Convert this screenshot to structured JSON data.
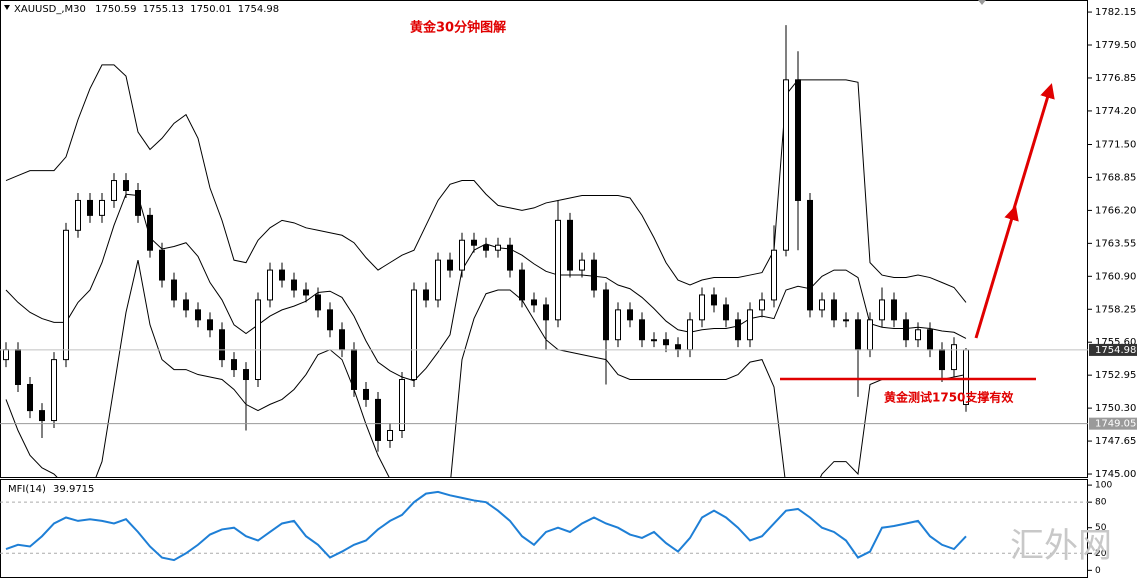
{
  "chart_data": [
    {
      "type": "candlestick",
      "symbol": "XAUUSD_,M30",
      "title": "黄金30分钟图解",
      "annotation": "黄金测试1750支撑有效",
      "watermark": "汇外网",
      "open": [
        1754.2,
        1755.0,
        1752.2,
        1750.1,
        1749.3,
        1754.2,
        1764.6,
        1767.0,
        1765.8,
        1767.0,
        1768.6,
        1767.8,
        1765.8,
        1763.0,
        1760.6,
        1759.0,
        1758.2,
        1757.4,
        1756.6,
        1754.2,
        1753.4,
        1752.6,
        1759.0,
        1761.4,
        1760.6,
        1759.8,
        1759.4,
        1758.2,
        1756.6,
        1755.0,
        1751.8,
        1751.0,
        1747.7,
        1748.5,
        1752.6,
        1759.8,
        1759.0,
        1762.2,
        1761.4,
        1763.8,
        1763.4,
        1763.0,
        1763.4,
        1761.4,
        1759.0,
        1758.6,
        1757.4,
        1765.4,
        1761.4,
        1762.2,
        1759.8,
        1755.8,
        1758.2,
        1757.4,
        1755.8,
        1755.8,
        1755.4,
        1755.0,
        1757.4,
        1759.4,
        1758.6,
        1757.4,
        1755.8,
        1758.2,
        1759.0,
        1763.0,
        1776.7,
        1767.0,
        1758.2,
        1759.0,
        1757.4,
        1757.4,
        1755.0,
        1757.4,
        1759.0,
        1757.4,
        1755.8,
        1756.6,
        1755.0,
        1753.4,
        1750.59
      ],
      "high": [
        1755.6,
        1755.6,
        1752.8,
        1750.7,
        1754.8,
        1765.2,
        1767.6,
        1767.6,
        1767.6,
        1769.2,
        1769.2,
        1768.4,
        1766.4,
        1763.6,
        1761.2,
        1759.6,
        1758.8,
        1758.0,
        1757.2,
        1754.8,
        1754.0,
        1759.6,
        1762.0,
        1762.0,
        1761.2,
        1760.4,
        1760.0,
        1758.8,
        1757.2,
        1755.6,
        1752.4,
        1751.6,
        1749.1,
        1753.2,
        1760.4,
        1760.4,
        1762.8,
        1762.8,
        1764.4,
        1764.4,
        1764.0,
        1764.0,
        1764.0,
        1762.0,
        1759.6,
        1759.2,
        1767.0,
        1766.0,
        1762.8,
        1762.8,
        1760.4,
        1758.8,
        1758.8,
        1758.0,
        1756.4,
        1756.4,
        1756.0,
        1758.0,
        1760.0,
        1760.0,
        1759.2,
        1758.0,
        1758.8,
        1759.6,
        1765.0,
        1781.1,
        1779.0,
        1767.6,
        1759.6,
        1759.6,
        1758.0,
        1758.0,
        1758.0,
        1760.0,
        1759.6,
        1758.0,
        1757.2,
        1757.2,
        1755.6,
        1756.0,
        1755.13
      ],
      "low": [
        1753.6,
        1751.6,
        1749.5,
        1747.9,
        1748.7,
        1753.6,
        1764.0,
        1765.2,
        1765.2,
        1766.4,
        1767.2,
        1765.2,
        1762.4,
        1760.0,
        1758.4,
        1757.6,
        1756.8,
        1756.0,
        1753.6,
        1752.8,
        1748.5,
        1752.0,
        1758.4,
        1760.0,
        1759.2,
        1758.8,
        1757.6,
        1756.0,
        1754.4,
        1751.2,
        1750.4,
        1746.8,
        1747.1,
        1747.9,
        1752.0,
        1758.4,
        1758.4,
        1760.8,
        1760.8,
        1762.8,
        1762.4,
        1762.4,
        1760.8,
        1758.4,
        1758.0,
        1755.0,
        1756.8,
        1760.8,
        1760.8,
        1759.2,
        1752.2,
        1755.2,
        1756.8,
        1755.2,
        1755.2,
        1754.8,
        1754.4,
        1754.4,
        1756.8,
        1758.0,
        1756.8,
        1755.2,
        1755.2,
        1757.6,
        1758.4,
        1762.5,
        1763.0,
        1757.6,
        1757.6,
        1756.8,
        1756.8,
        1751.2,
        1754.4,
        1756.8,
        1756.8,
        1755.2,
        1755.2,
        1754.4,
        1752.4,
        1752.8,
        1750.01
      ],
      "close": [
        1755.0,
        1752.2,
        1750.1,
        1749.3,
        1754.2,
        1764.6,
        1767.0,
        1765.8,
        1767.0,
        1768.6,
        1767.8,
        1765.8,
        1763.0,
        1760.6,
        1759.0,
        1758.2,
        1757.4,
        1756.6,
        1754.2,
        1753.4,
        1752.6,
        1759.0,
        1761.4,
        1760.6,
        1759.8,
        1759.4,
        1758.2,
        1756.6,
        1755.0,
        1751.8,
        1751.0,
        1747.7,
        1748.5,
        1752.6,
        1759.8,
        1759.0,
        1762.2,
        1761.4,
        1763.8,
        1763.4,
        1763.0,
        1763.4,
        1761.4,
        1759.0,
        1758.6,
        1757.4,
        1765.4,
        1761.4,
        1762.2,
        1759.8,
        1755.8,
        1758.2,
        1757.4,
        1755.8,
        1755.8,
        1755.4,
        1755.0,
        1757.4,
        1759.4,
        1758.6,
        1757.4,
        1755.8,
        1758.2,
        1759.0,
        1763.0,
        1776.7,
        1767.0,
        1758.2,
        1759.0,
        1757.4,
        1757.4,
        1755.0,
        1757.4,
        1759.0,
        1757.4,
        1755.8,
        1756.6,
        1755.0,
        1753.4,
        1755.4,
        1754.98
      ],
      "bollinger": {
        "upper": [
          1768.6,
          1769.0,
          1769.4,
          1769.4,
          1769.4,
          1770.5,
          1773.5,
          1776.0,
          1777.9,
          1777.9,
          1777.0,
          1772.5,
          1771.1,
          1772.0,
          1773.2,
          1773.9,
          1772.0,
          1768.0,
          1765.4,
          1762.2,
          1762.0,
          1763.8,
          1764.8,
          1765.4,
          1765.2,
          1764.8,
          1764.6,
          1764.4,
          1764.2,
          1763.6,
          1762.4,
          1761.4,
          1762.0,
          1762.6,
          1763.0,
          1765.0,
          1767.0,
          1768.3,
          1768.6,
          1768.6,
          1767.5,
          1766.6,
          1766.4,
          1766.2,
          1766.4,
          1766.8,
          1767.0,
          1767.2,
          1767.4,
          1767.4,
          1767.4,
          1767.4,
          1767.2,
          1765.8,
          1764.0,
          1762.0,
          1760.6,
          1760.2,
          1760.6,
          1760.8,
          1760.8,
          1760.8,
          1761.0,
          1761.2,
          1763.0,
          1775.5,
          1776.7,
          1776.7,
          1776.7,
          1776.7,
          1776.7,
          1776.5,
          1762.0,
          1761.0,
          1760.8,
          1760.8,
          1761.0,
          1760.8,
          1760.4,
          1760.0,
          1758.8
        ],
        "middle": [
          1759.8,
          1758.8,
          1758.0,
          1757.5,
          1757.2,
          1757.2,
          1758.8,
          1759.8,
          1762.0,
          1765.0,
          1767.5,
          1767.4,
          1764.0,
          1763.1,
          1763.3,
          1763.6,
          1762.5,
          1760.4,
          1759.0,
          1757.0,
          1756.3,
          1757.0,
          1757.7,
          1758.2,
          1758.5,
          1758.9,
          1759.6,
          1759.7,
          1759.2,
          1757.7,
          1755.7,
          1754.0,
          1753.3,
          1752.8,
          1752.5,
          1753.5,
          1754.8,
          1756.2,
          1761.4,
          1763.0,
          1763.5,
          1763.2,
          1763.1,
          1762.6,
          1761.9,
          1761.3,
          1761.0,
          1761.0,
          1761.0,
          1760.9,
          1760.8,
          1760.2,
          1759.9,
          1759.2,
          1758.3,
          1757.3,
          1756.6,
          1756.4,
          1756.6,
          1756.7,
          1756.7,
          1756.9,
          1757.5,
          1757.7,
          1757.5,
          1759.8,
          1760.1,
          1759.9,
          1760.9,
          1761.4,
          1761.4,
          1760.8,
          1757.1,
          1756.8,
          1756.7,
          1756.7,
          1756.8,
          1756.7,
          1756.5,
          1756.4,
          1755.9
        ],
        "lower": [
          1751.0,
          1748.5,
          1746.5,
          1745.5,
          1745.0,
          1744.0,
          1744.0,
          1743.5,
          1746.0,
          1752.0,
          1758.0,
          1762.2,
          1757.0,
          1754.2,
          1753.4,
          1753.4,
          1753.0,
          1752.8,
          1752.6,
          1751.8,
          1750.6,
          1750.1,
          1750.6,
          1751.0,
          1751.8,
          1753.0,
          1754.6,
          1755.0,
          1754.2,
          1751.8,
          1749.0,
          1746.5,
          1744.6,
          1743.0,
          1742.0,
          1742.0,
          1742.5,
          1744.0,
          1754.2,
          1757.5,
          1759.5,
          1759.8,
          1759.8,
          1759.0,
          1757.4,
          1755.8,
          1755.0,
          1754.8,
          1754.6,
          1754.4,
          1754.2,
          1753.0,
          1752.6,
          1752.6,
          1752.6,
          1752.6,
          1752.6,
          1752.6,
          1752.6,
          1752.6,
          1752.6,
          1753.0,
          1754.0,
          1754.2,
          1752.0,
          1744.0,
          1743.5,
          1743.0,
          1745.0,
          1746.0,
          1746.0,
          1745.0,
          1752.2,
          1752.6,
          1752.6,
          1752.6,
          1752.6,
          1752.6,
          1752.6,
          1752.8,
          1753.0
        ]
      },
      "reference_line": 1749.05,
      "ylim": [
        1744.68,
        1783.12
      ],
      "yticks": [
        1782.15,
        {
          "value": 1779.5,
          "label": "1779.50"
        },
        1776.85,
        {
          "value": 1774.2,
          "label": "1774.20"
        },
        {
          "value": 1771.5,
          "label": "1771.50"
        },
        1768.85,
        {
          "value": 1766.2,
          "label": "1766.20"
        },
        1763.55,
        {
          "value": 1760.9,
          "label": "1760.90"
        },
        1758.25,
        {
          "value": 1755.6,
          "label": "1755.60"
        },
        1752.95,
        {
          "value": 1750.3,
          "label": "1750.30"
        },
        1747.65,
        {
          "value": 1745,
          "label": "1745.00"
        }
      ],
      "color": "#000000",
      "band_color": "#000000",
      "annotation_color": "#e00000"
    },
    {
      "type": "line",
      "name": "MFI(14)",
      "values": [
        25,
        30,
        28,
        40,
        55,
        62,
        58,
        60,
        58,
        55,
        60,
        45,
        28,
        15,
        12,
        20,
        30,
        42,
        48,
        50,
        40,
        35,
        45,
        55,
        58,
        40,
        30,
        15,
        22,
        30,
        35,
        48,
        58,
        65,
        80,
        90,
        92,
        88,
        85,
        82,
        80,
        70,
        58,
        40,
        30,
        45,
        50,
        45,
        55,
        62,
        55,
        50,
        42,
        38,
        45,
        32,
        22,
        38,
        62,
        70,
        62,
        50,
        35,
        40,
        55,
        70,
        72,
        62,
        50,
        45,
        35,
        15,
        22,
        50,
        52,
        55,
        58,
        40,
        30,
        25,
        39.9715
      ],
      "ylim": [
        -9,
        106
      ],
      "yticks": [
        0,
        20,
        50,
        80,
        100
      ],
      "levels": [
        20,
        80
      ],
      "color": "#1e7fd6"
    }
  ]
}
